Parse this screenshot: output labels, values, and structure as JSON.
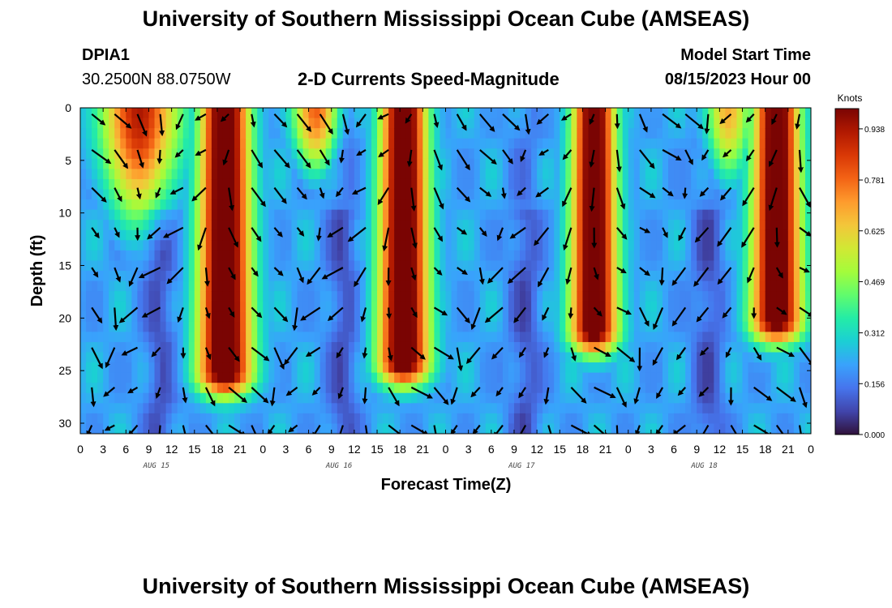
{
  "header": {
    "title": "University of Southern Mississippi Ocean Cube (AMSEAS)",
    "title_repeat": "University of Southern Mississippi Ocean Cube (AMSEAS)",
    "station_id": "DPIA1",
    "coordinates": "30.2500N  88.0750W",
    "subtitle": "2-D Currents Speed-Magnitude",
    "start_label": "Model Start Time",
    "start_value": "08/15/2023 Hour 00"
  },
  "chart_data": {
    "type": "heatmap",
    "title": "2-D Currents Speed-Magnitude",
    "xlabel": "Forecast Time(Z)",
    "ylabel": "Depth (ft)",
    "x_tick_labels": [
      "0",
      "3",
      "6",
      "9",
      "12",
      "15",
      "18",
      "21",
      "0",
      "3",
      "6",
      "9",
      "12",
      "15",
      "18",
      "21",
      "0",
      "3",
      "6",
      "9",
      "12",
      "15",
      "18",
      "21",
      "0",
      "3",
      "6",
      "9",
      "12",
      "15",
      "18",
      "21",
      "0"
    ],
    "x_range_hours": [
      0,
      96
    ],
    "y_range_ft": [
      0,
      31
    ],
    "y_ticks": [
      0,
      5,
      10,
      15,
      20,
      25,
      30
    ],
    "date_labels": [
      {
        "text": "AUG 15",
        "hour": 10
      },
      {
        "text": "AUG 16",
        "hour": 34
      },
      {
        "text": "AUG 17",
        "hour": 58
      },
      {
        "text": "AUG 18",
        "hour": 82
      }
    ],
    "colorbar": {
      "title": "Knots",
      "ticks": [
        "0.938",
        "0.781",
        "0.625",
        "0.469",
        "0.312",
        "0.156",
        "0.000"
      ],
      "range": [
        0,
        1.0
      ],
      "colors": [
        "#30123b",
        "#4145ab",
        "#4675ed",
        "#39a2fc",
        "#1bcfd4",
        "#24eca6",
        "#61fc6c",
        "#a4fc3b",
        "#d1e834",
        "#f3c63a",
        "#fe9b2d",
        "#f36315",
        "#d93806",
        "#b11901",
        "#7a0403"
      ]
    },
    "speed_pulses": [
      {
        "center_hour": 19,
        "width_hours": 3.2,
        "depth_max_ft": 25,
        "amplitude": 0.95
      },
      {
        "center_hour": 42.5,
        "width_hours": 3.0,
        "depth_max_ft": 24,
        "amplitude": 0.95
      },
      {
        "center_hour": 67.5,
        "width_hours": 2.8,
        "depth_max_ft": 21,
        "amplitude": 0.92
      },
      {
        "center_hour": 91.5,
        "width_hours": 3.0,
        "depth_max_ft": 20,
        "amplitude": 0.92
      }
    ],
    "surface_pulses": [
      {
        "center_hour": 8,
        "width_hours": 5,
        "depth_max_ft": 12,
        "amplitude": 0.75
      },
      {
        "center_hour": 31,
        "width_hours": 3,
        "depth_max_ft": 7,
        "amplitude": 0.6
      },
      {
        "center_hour": 85,
        "width_hours": 3,
        "depth_max_ft": 8,
        "amplitude": 0.5
      }
    ],
    "vector_rows_ft": [
      0.6,
      4.0,
      7.6,
      11.4,
      15.2,
      19.0,
      22.8,
      26.6,
      30.2
    ],
    "vector_columns_hours": [
      3,
      6,
      9,
      12,
      15,
      18,
      21,
      24,
      27,
      30,
      33,
      36,
      39,
      42,
      45,
      48,
      51,
      54,
      57,
      60,
      63,
      66,
      69,
      72,
      75,
      78,
      81,
      84,
      87,
      90,
      93,
      96
    ]
  }
}
